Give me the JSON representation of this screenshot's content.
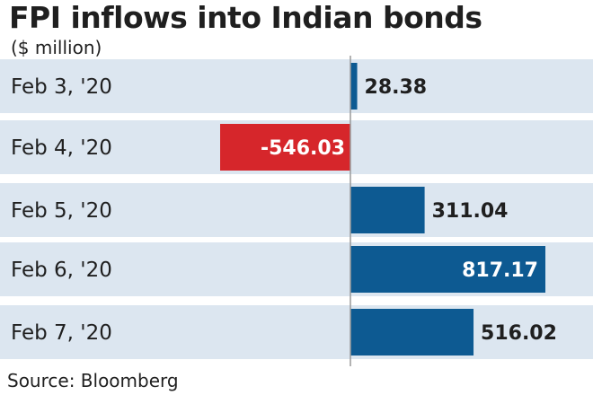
{
  "title": "FPI inflows into Indian bonds",
  "subtitle": "($ million)",
  "source": "Source: Bloomberg",
  "colors": {
    "row_bg": "#dce6f0",
    "positive_bar": "#0d5a92",
    "negative_bar": "#d6262b",
    "axis_line": "#9a9a9a",
    "label_dark": "#1f1f1f",
    "label_light": "#ffffff"
  },
  "chart_data": {
    "type": "bar",
    "orientation": "horizontal",
    "categories": [
      "Feb 3, '20",
      "Feb 4, '20",
      "Feb 5, '20",
      "Feb 6, '20",
      "Feb 7, '20"
    ],
    "values": [
      28.38,
      -546.03,
      311.04,
      817.17,
      516.02
    ],
    "value_labels": [
      "28.38",
      "-546.03",
      "311.04",
      "817.17",
      "516.02"
    ],
    "title": "FPI inflows into Indian bonds",
    "unit": "($ million)",
    "xlim": [
      -1000,
      817.17
    ],
    "grid": false,
    "legend": "none"
  }
}
